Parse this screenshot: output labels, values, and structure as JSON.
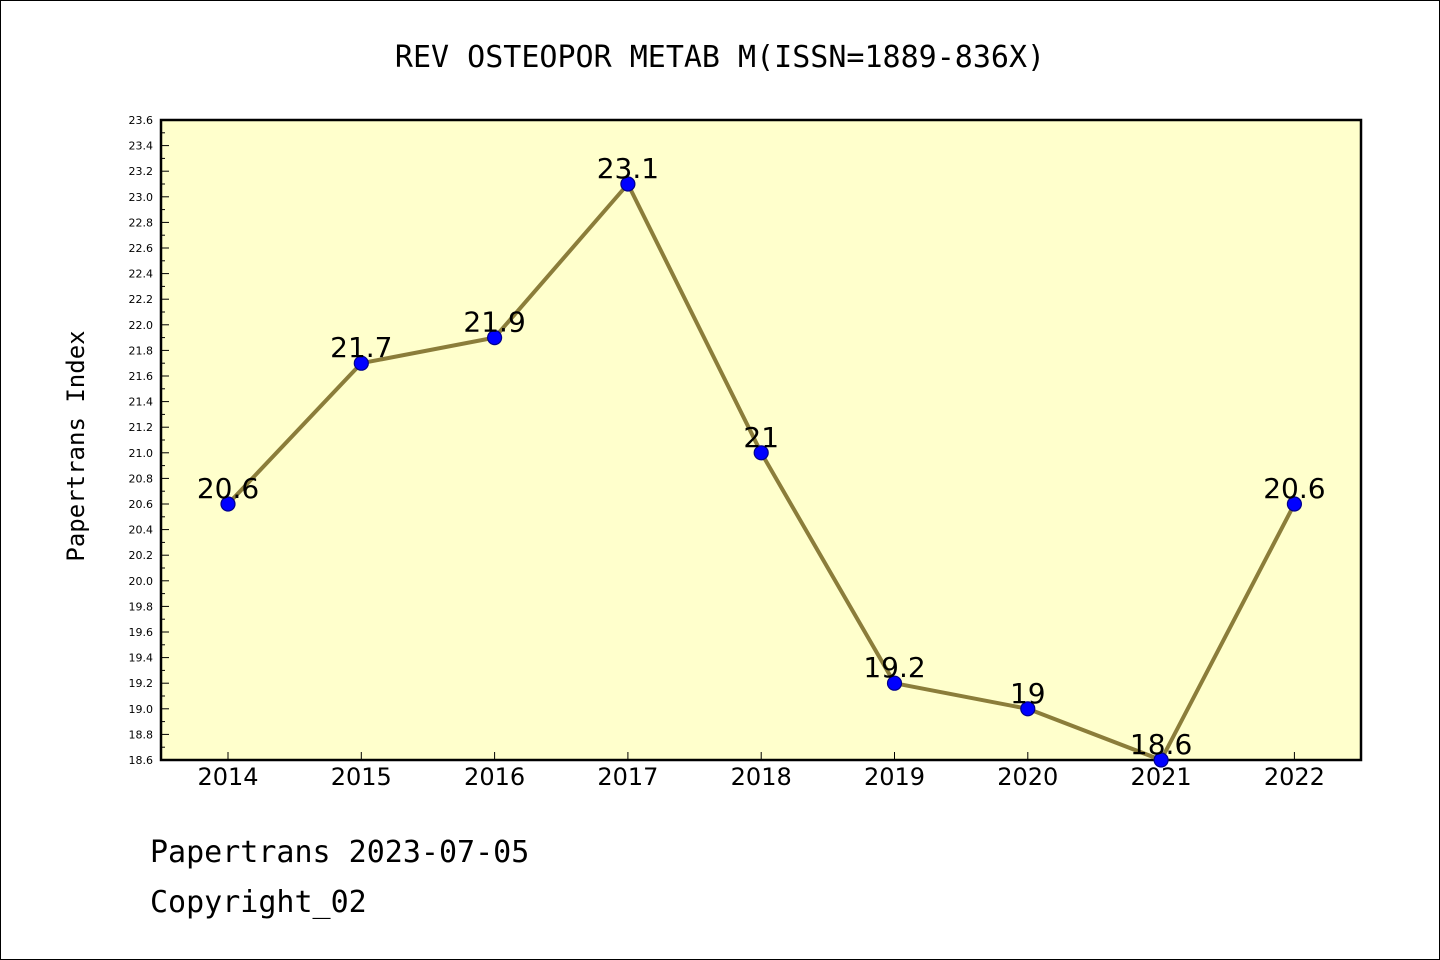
{
  "chart_data": {
    "type": "line",
    "title": "REV OSTEOPOR METAB M(ISSN=1889-836X)",
    "xlabel": "",
    "ylabel": "Papertrans Index",
    "categories": [
      "2014",
      "2015",
      "2016",
      "2017",
      "2018",
      "2019",
      "2020",
      "2021",
      "2022"
    ],
    "values": [
      20.6,
      21.7,
      21.9,
      23.1,
      21,
      19.2,
      19,
      18.6,
      20.6
    ],
    "data_labels": [
      "20.6",
      "21.7",
      "21.9",
      "23.1",
      "21",
      "19.2",
      "19",
      "18.6",
      "20.6"
    ],
    "ylim": [
      18.6,
      23.6
    ],
    "yticks": [
      "18.6",
      "18.8",
      "19.0",
      "19.2",
      "19.4",
      "19.6",
      "19.8",
      "20.0",
      "20.2",
      "20.4",
      "20.6",
      "20.8",
      "21.0",
      "21.2",
      "21.4",
      "21.6",
      "21.8",
      "22.0",
      "22.2",
      "22.4",
      "22.6",
      "22.8",
      "23.0",
      "23.2",
      "23.4",
      "23.6"
    ],
    "grid": false,
    "colors": {
      "plot_background": "#ffffcc",
      "line": "#8b7d3a",
      "marker": "#0000ff",
      "marker_edge": "#00008b"
    }
  },
  "footer": {
    "date_line": "Papertrans 2023-07-05",
    "copyright": "Copyright_02"
  }
}
